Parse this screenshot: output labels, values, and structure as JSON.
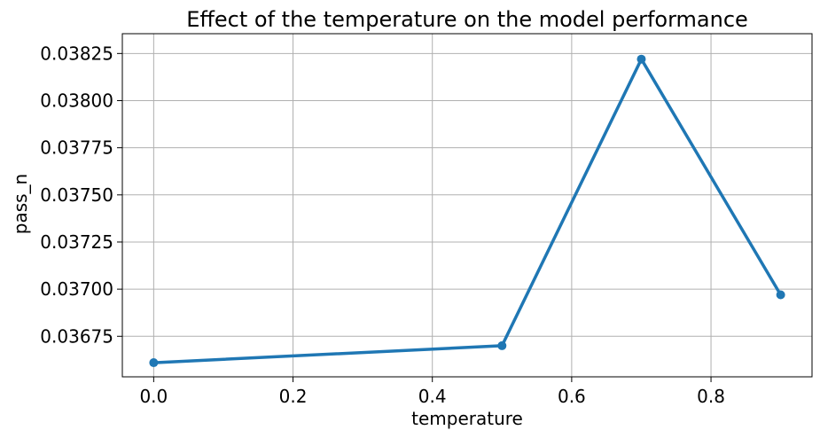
{
  "chart_data": {
    "type": "line",
    "title": "Effect of the temperature on the model performance",
    "xlabel": "temperature",
    "ylabel": "pass_n",
    "x": [
      0.0,
      0.5,
      0.7,
      0.9
    ],
    "series": [
      {
        "values": [
          0.03661,
          0.0367,
          0.03822,
          0.03697
        ],
        "color": "#1f77b4"
      }
    ],
    "xlim": [
      -0.045,
      0.945
    ],
    "ylim": [
      0.036535,
      0.038355
    ],
    "xticks": [
      0.0,
      0.2,
      0.4,
      0.6,
      0.8
    ],
    "xtick_labels": [
      "0.0",
      "0.2",
      "0.4",
      "0.6",
      "0.8"
    ],
    "yticks": [
      0.03675,
      0.037,
      0.03725,
      0.0375,
      0.03775,
      0.038,
      0.03825
    ],
    "ytick_labels": [
      "0.03675",
      "0.03700",
      "0.03725",
      "0.03750",
      "0.03775",
      "0.03800",
      "0.03825"
    ],
    "grid": true,
    "markers": true,
    "grid_color": "#b0b0b0",
    "axis_color": "#000000"
  }
}
